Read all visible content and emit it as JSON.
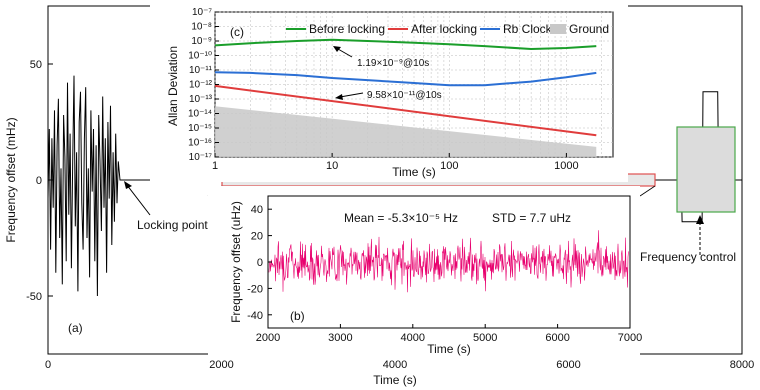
{
  "chart_data": [
    {
      "id": "a",
      "type": "line",
      "panel_label": "(a)",
      "xlabel": "Time (s)",
      "ylabel": "Frequency offset (mHz)",
      "xlim": [
        0,
        8000
      ],
      "ylim": [
        -75,
        75
      ],
      "x_ticks": [
        0,
        2000,
        4000,
        6000,
        8000
      ],
      "y_ticks": [
        -50,
        0,
        50
      ],
      "series": [
        {
          "color": "#000000",
          "x": [
            0,
            15,
            30,
            45,
            60,
            75,
            90,
            105,
            120,
            135,
            150,
            165,
            180,
            195,
            210,
            225,
            240,
            255,
            270,
            285,
            300,
            315,
            330,
            345,
            360,
            375,
            390,
            405,
            420,
            435,
            450,
            465,
            480,
            495,
            510,
            525,
            540,
            555,
            570,
            585,
            600,
            615,
            630,
            645,
            660,
            675,
            690,
            705,
            720,
            735,
            750,
            765,
            780,
            795,
            810,
            830,
            7000,
            7300,
            7310,
            7540,
            7550,
            7720,
            7730,
            7880,
            7890,
            8000
          ],
          "y": [
            -8,
            22,
            -30,
            18,
            -12,
            30,
            -40,
            15,
            35,
            -25,
            5,
            -45,
            28,
            10,
            -35,
            42,
            -15,
            20,
            -38,
            8,
            45,
            -20,
            12,
            -48,
            25,
            38,
            -10,
            -30,
            18,
            40,
            -25,
            5,
            -42,
            30,
            -5,
            22,
            -35,
            15,
            -50,
            28,
            8,
            -22,
            36,
            -12,
            18,
            -40,
            25,
            -8,
            32,
            -28,
            12,
            -18,
            20,
            -10,
            8,
            0,
            0,
            0,
            -18,
            -18,
            38,
            38,
            0,
            0,
            0,
            0
          ]
        }
      ],
      "annotations": [
        "Locking point",
        "Frequency control"
      ]
    },
    {
      "id": "b",
      "type": "line",
      "panel_label": "(b)",
      "xlabel": "Time (s)",
      "ylabel": "Frequency offset (uHz)",
      "xlim": [
        2000,
        7000
      ],
      "ylim": [
        -50,
        50
      ],
      "x_ticks": [
        2000,
        3000,
        4000,
        5000,
        6000,
        7000
      ],
      "y_ticks": [
        -40,
        -20,
        0,
        20,
        40
      ],
      "series": [
        {
          "color": "#e8006e",
          "noise_std": 7.7
        }
      ],
      "annotations": [
        "Mean = -5.3×10⁻⁵ Hz",
        "STD = 7.7 uHz"
      ]
    },
    {
      "id": "c",
      "type": "line",
      "log_x": true,
      "log_y": true,
      "panel_label": "(c)",
      "xlabel": "Time (s)",
      "ylabel": "Allan Deviation",
      "xlim": [
        1,
        2500
      ],
      "ylim_exp": [
        -17,
        -7
      ],
      "x_ticks": [
        1,
        10,
        100,
        1000
      ],
      "y_tick_exps": [
        -17,
        -16,
        -15,
        -14,
        -13,
        -12,
        -11,
        -10,
        -9,
        -8,
        -7
      ],
      "legend_position": "top",
      "series": [
        {
          "name": "Before locking",
          "color": "#1a9e2a",
          "x": [
            1,
            2,
            5,
            10,
            20,
            50,
            100,
            200,
            500,
            1000,
            1800
          ],
          "y_exp": [
            -9.3,
            -9.15,
            -9.0,
            -8.92,
            -9.0,
            -9.12,
            -9.22,
            -9.35,
            -9.55,
            -9.48,
            -9.35
          ]
        },
        {
          "name": "After locking",
          "color": "#e03c3c",
          "x": [
            1,
            1800
          ],
          "y_exp": [
            -12.1,
            -15.5
          ]
        },
        {
          "name": "Rb Clock",
          "color": "#2b6fd4",
          "x": [
            1,
            2,
            5,
            10,
            20,
            50,
            100,
            200,
            500,
            1000,
            1800
          ],
          "y_exp": [
            -11.15,
            -11.2,
            -11.35,
            -11.55,
            -11.7,
            -11.9,
            -12.05,
            -12.05,
            -11.8,
            -11.5,
            -11.2
          ]
        },
        {
          "name": "Ground",
          "color": "#c8c8c8",
          "x": [
            1,
            1800
          ],
          "y_exp_top": [
            -13.5,
            -16.3
          ]
        }
      ],
      "annotations": [
        "1.19×10⁻⁹@10s",
        "9.58×10⁻¹¹@10s"
      ]
    }
  ]
}
